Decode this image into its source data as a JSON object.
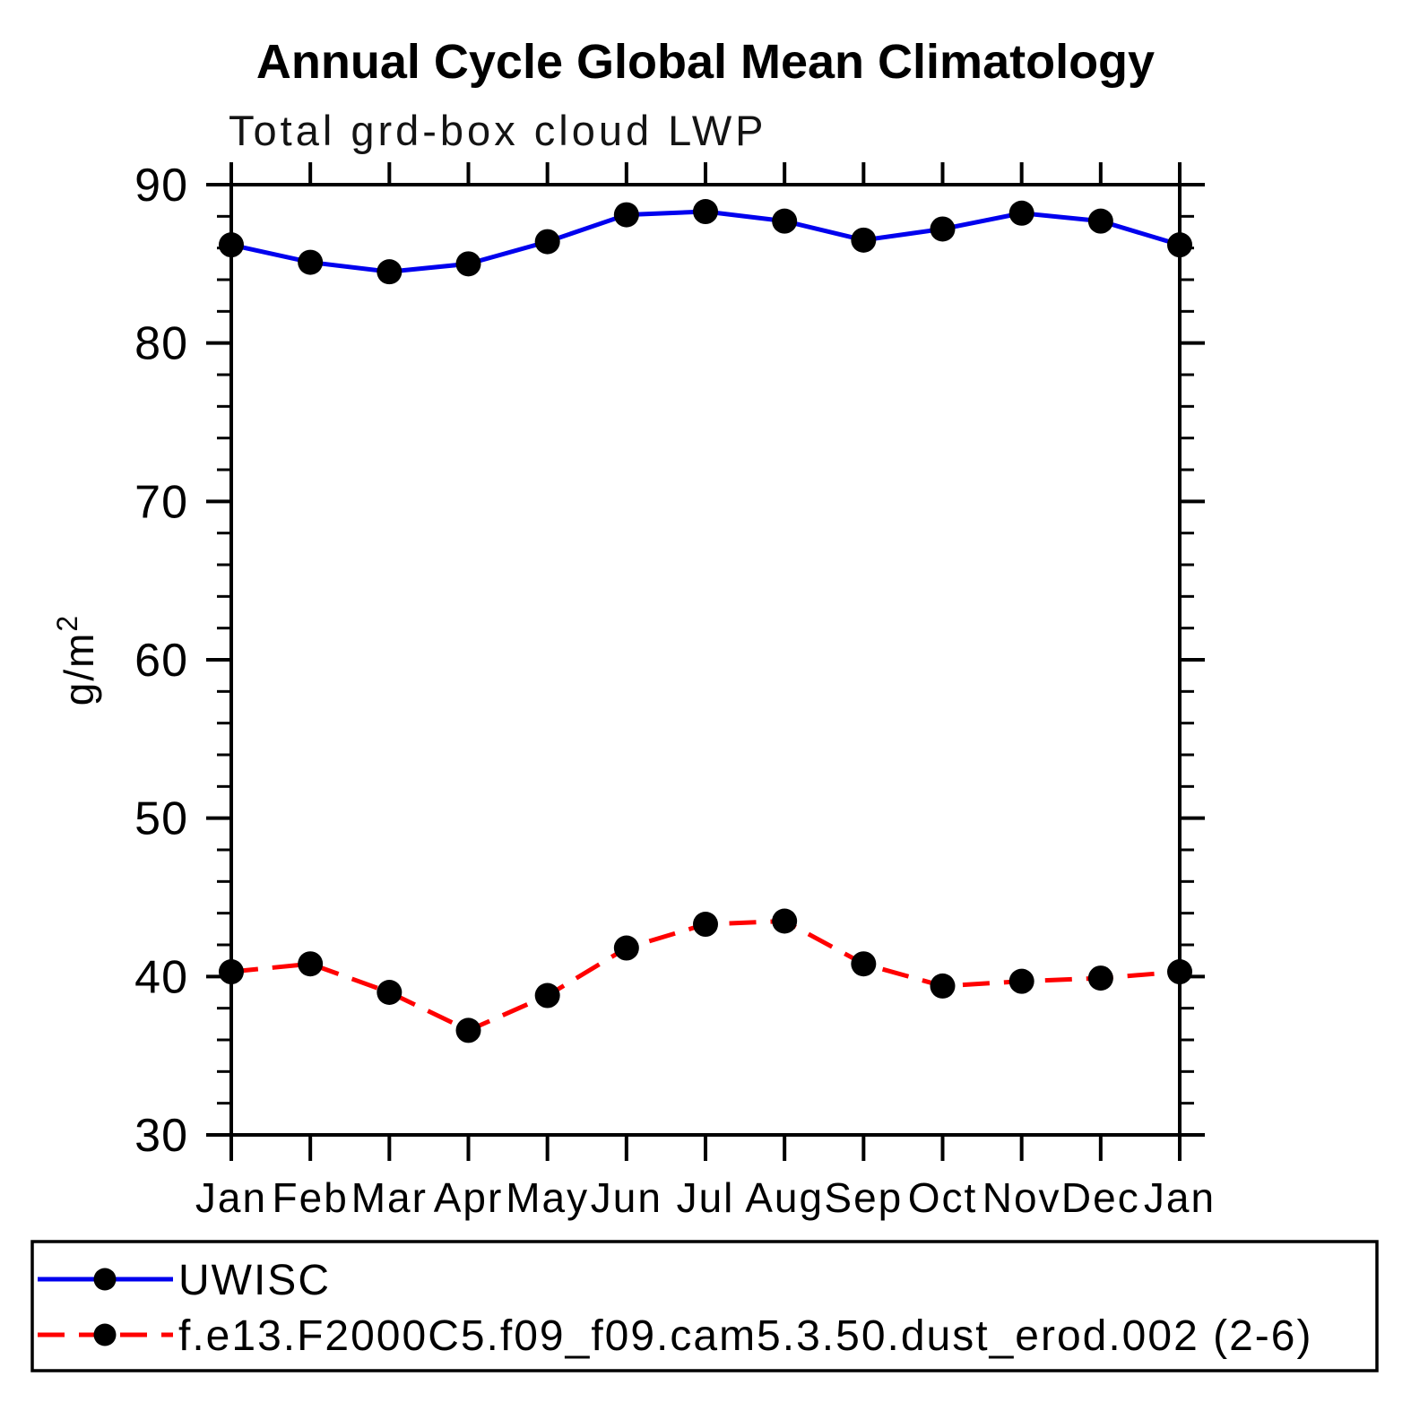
{
  "title": "Annual Cycle Global Mean Climatology",
  "subtitle": "Total grd-box cloud LWP",
  "yaxis": {
    "label_base": "g/m",
    "label_sup": "2",
    "tick_labels": [
      "30",
      "40",
      "50",
      "60",
      "70",
      "80",
      "90"
    ]
  },
  "chart_data": {
    "type": "line",
    "categories": [
      "Jan",
      "Feb",
      "Mar",
      "Apr",
      "May",
      "Jun",
      "Jul",
      "Aug",
      "Sep",
      "Oct",
      "Nov",
      "Dec",
      "Jan"
    ],
    "ylabel": "g/m2",
    "ylim": [
      30,
      90
    ],
    "ytick_major": 10,
    "ytick_minor": 2,
    "grid": false,
    "legend_position": "bottom-left-box",
    "series": [
      {
        "name": "UWISC",
        "color": "#0000ee",
        "style": "solid",
        "marker": "filled-circle",
        "marker_color": "#000000",
        "values": [
          86.2,
          85.1,
          84.5,
          85.0,
          86.4,
          88.1,
          88.3,
          87.7,
          86.5,
          87.2,
          88.2,
          87.7,
          86.2
        ]
      },
      {
        "name": "f.e13.F2000C5.f09_f09.cam5.3.50.dust_erod.002 (2-6)",
        "color": "#ff0000",
        "style": "dashed",
        "marker": "filled-circle",
        "marker_color": "#000000",
        "values": [
          40.3,
          40.8,
          39.0,
          36.6,
          38.8,
          41.8,
          43.3,
          43.5,
          40.8,
          39.4,
          39.7,
          39.9,
          40.3
        ]
      }
    ]
  }
}
